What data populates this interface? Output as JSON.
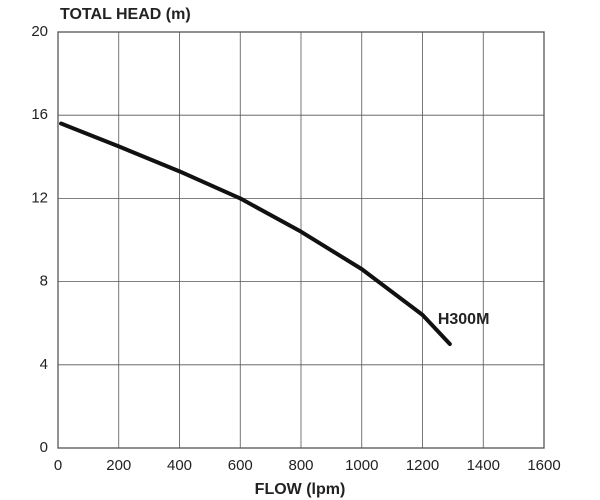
{
  "chart_data": {
    "type": "line",
    "title": "TOTAL HEAD (m)",
    "x_label": "FLOW (lpm)",
    "x": [
      10,
      200,
      400,
      600,
      800,
      1000,
      1200,
      1290
    ],
    "series": [
      {
        "name": "H300M",
        "color": "#111111",
        "values": [
          15.6,
          14.5,
          13.3,
          12.0,
          10.4,
          8.6,
          6.4,
          5.0
        ]
      }
    ],
    "xlim": [
      0,
      1600
    ],
    "xticks": [
      0,
      200,
      400,
      600,
      800,
      1000,
      1200,
      1400,
      1600
    ],
    "ylim": [
      0,
      20
    ],
    "yticks": [
      0,
      4,
      8,
      12,
      16,
      20
    ],
    "grid": true
  }
}
